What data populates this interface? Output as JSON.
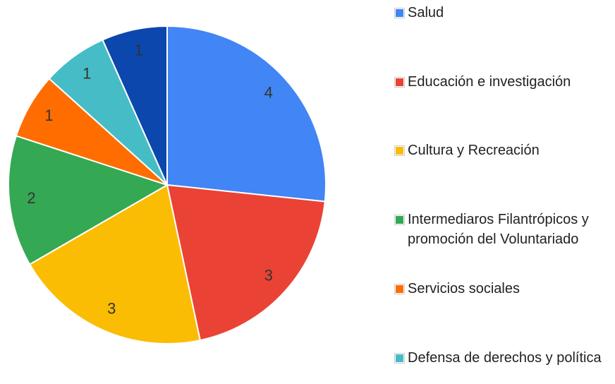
{
  "chart_data": {
    "type": "pie",
    "categories": [
      "Salud",
      "Educación e investigación",
      "Cultura y Recreación",
      "Intermediaros Filantrópicos y promoción del Voluntariado",
      "Servicios sociales",
      "Defensa de derechos y política",
      null
    ],
    "values": [
      4,
      3,
      3,
      2,
      1,
      1,
      1
    ],
    "colors": [
      "#4285f4",
      "#ea4335",
      "#fbbc04",
      "#34a853",
      "#ff6d01",
      "#46bdc6",
      "#0b47ad"
    ]
  }
}
